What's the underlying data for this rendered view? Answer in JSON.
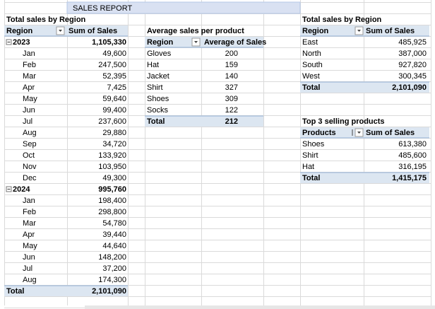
{
  "header": {
    "title": "SALES REPORT"
  },
  "region_table": {
    "title": "Total sales by Region",
    "columns": [
      "Region",
      "Sum of Sales"
    ],
    "groups": [
      {
        "label": "2023",
        "value": "1,105,330",
        "rows": [
          {
            "label": "Jan",
            "value": "49,600"
          },
          {
            "label": "Feb",
            "value": "247,500"
          },
          {
            "label": "Mar",
            "value": "52,395"
          },
          {
            "label": "Apr",
            "value": "7,425"
          },
          {
            "label": "May",
            "value": "59,640"
          },
          {
            "label": "Jun",
            "value": "99,400"
          },
          {
            "label": "Jul",
            "value": "237,600"
          },
          {
            "label": "Aug",
            "value": "29,880"
          },
          {
            "label": "Sep",
            "value": "34,720"
          },
          {
            "label": "Oct",
            "value": "133,920"
          },
          {
            "label": "Nov",
            "value": "103,950"
          },
          {
            "label": "Dec",
            "value": "49,300"
          }
        ]
      },
      {
        "label": "2024",
        "value": "995,760",
        "rows": [
          {
            "label": "Jan",
            "value": "198,400"
          },
          {
            "label": "Feb",
            "value": "298,800"
          },
          {
            "label": "Mar",
            "value": "54,780"
          },
          {
            "label": "Apr",
            "value": "39,440"
          },
          {
            "label": "May",
            "value": "44,640"
          },
          {
            "label": "Jun",
            "value": "148,200"
          },
          {
            "label": "Jul",
            "value": "37,200"
          },
          {
            "label": "Aug",
            "value": "174,300"
          }
        ]
      }
    ],
    "total": {
      "label": "Total",
      "value": "2,101,090"
    }
  },
  "product_table": {
    "title": "Average sales per product",
    "columns": [
      "Region",
      "Average of Sales"
    ],
    "rows": [
      {
        "label": "Gloves",
        "value": "200"
      },
      {
        "label": "Hat",
        "value": "159"
      },
      {
        "label": "Jacket",
        "value": "140"
      },
      {
        "label": "Shirt",
        "value": "327"
      },
      {
        "label": "Shoes",
        "value": "309"
      },
      {
        "label": "Socks",
        "value": "122"
      }
    ],
    "total": {
      "label": "Total",
      "value": "212"
    }
  },
  "region_summary": {
    "title": "Total sales by Region",
    "columns": [
      "Region",
      "Sum of Sales"
    ],
    "rows": [
      {
        "label": "East",
        "value": "485,925"
      },
      {
        "label": "North",
        "value": "387,000"
      },
      {
        "label": "South",
        "value": "927,820"
      },
      {
        "label": "West",
        "value": "300,345"
      }
    ],
    "total": {
      "label": "Total",
      "value": "2,101,090"
    }
  },
  "top_products": {
    "title": "Top 3 selling products",
    "columns": [
      "Products",
      "Sum of Sales"
    ],
    "rows": [
      {
        "label": "Shoes",
        "value": "613,380"
      },
      {
        "label": "Shirt",
        "value": "485,600"
      },
      {
        "label": "Hat",
        "value": "316,195"
      }
    ],
    "total": {
      "label": "Total",
      "value": "1,415,175"
    }
  }
}
